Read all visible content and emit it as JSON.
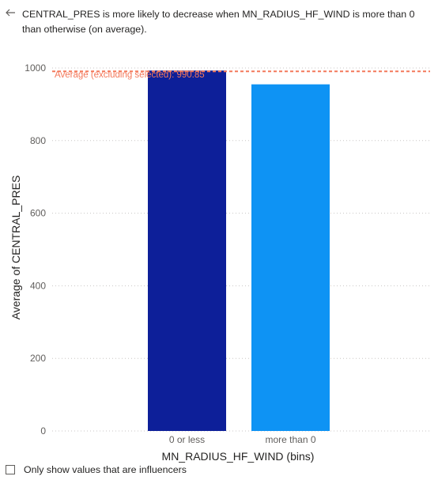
{
  "header": {
    "back_icon": "arrow-left-icon",
    "headline": "CENTRAL_PRES is more likely to decrease when MN_RADIUS_HF_WIND is more than 0 than otherwise (on average)."
  },
  "chart_data": {
    "type": "bar",
    "categories": [
      "0 or less",
      "more than 0"
    ],
    "values": [
      993,
      955
    ],
    "colors": [
      "#0d1f99",
      "#0e93f4"
    ],
    "xlabel": "MN_RADIUS_HF_WIND (bins)",
    "ylabel": "Average of CENTRAL_PRES",
    "ylim": [
      0,
      1000
    ],
    "yticks": [
      0,
      200,
      400,
      600,
      800,
      1000
    ],
    "grid": true,
    "reference_line": {
      "label": "Average (excluding selected): 990.85",
      "value": 990.85,
      "color": "#f4795b"
    }
  },
  "footer": {
    "checkbox_label": "Only show values that are influencers",
    "checked": false
  }
}
